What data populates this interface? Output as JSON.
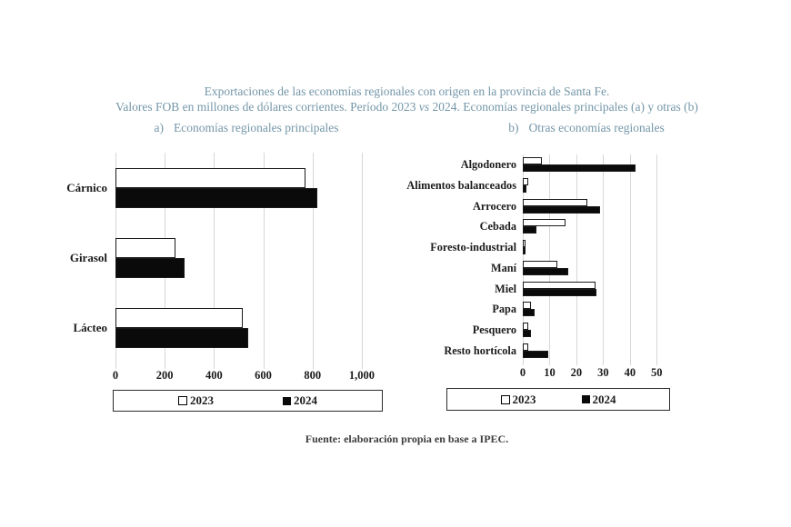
{
  "title": {
    "line1": "Exportaciones de las economías regionales con origen en la provincia de Santa Fe.",
    "line2_pre": "Valores FOB en millones de dólares corrientes. Período 2023 ",
    "line2_vs": "vs",
    "line2_post": " 2024. Economías regionales principales (a) y otras (b)"
  },
  "sections": {
    "a_prefix": "a)",
    "a_label": "Economías regionales principales",
    "b_prefix": "b)",
    "b_label": "Otras economías regionales"
  },
  "legend": {
    "label_2023": "2023",
    "label_2024": "2024"
  },
  "footer": "Fuente: elaboración propia en base a IPEC.",
  "colors": {
    "title_text": "#7496a8",
    "body_text": "#1b1b1b",
    "gridline": "#d7d7d7",
    "bar_2023_fill": "#ffffff",
    "bar_2024_fill": "#0a0a0a",
    "bar_border": "#1a1a1a"
  },
  "chart_data": [
    {
      "id": "principales",
      "type": "bar",
      "orientation": "horizontal",
      "title": "Economías regionales principales",
      "categories": [
        "Cárnico",
        "Girasol",
        "Lácteo"
      ],
      "series": [
        {
          "name": "2023",
          "values": [
            770,
            245,
            515
          ]
        },
        {
          "name": "2024",
          "values": [
            820,
            280,
            540
          ]
        }
      ],
      "xlim": [
        0,
        1100
      ],
      "xticks": [
        0,
        200,
        400,
        600,
        800,
        1000
      ],
      "xtick_labels": [
        "0",
        "200",
        "400",
        "600",
        "800",
        "1,000"
      ],
      "grid": true,
      "legend_position": "bottom"
    },
    {
      "id": "otras",
      "type": "bar",
      "orientation": "horizontal",
      "title": "Otras economías regionales",
      "categories": [
        "Algodonero",
        "Alimentos balanceados",
        "Arrocero",
        "Cebada",
        "Foresto-industrial",
        "Maní",
        "Miel",
        "Papa",
        "Pesquero",
        "Resto hortícola"
      ],
      "series": [
        {
          "name": "2023",
          "values": [
            7,
            2,
            24,
            16,
            1,
            13,
            27,
            3,
            2,
            2
          ]
        },
        {
          "name": "2024",
          "values": [
            42,
            1.5,
            29,
            5,
            1,
            17,
            27.5,
            4.5,
            3,
            9.5
          ]
        }
      ],
      "xlim": [
        0,
        55
      ],
      "xticks": [
        0,
        10,
        20,
        30,
        40,
        50
      ],
      "xtick_labels": [
        "0",
        "10",
        "20",
        "30",
        "40",
        "50"
      ],
      "grid": true,
      "legend_position": "bottom"
    }
  ]
}
